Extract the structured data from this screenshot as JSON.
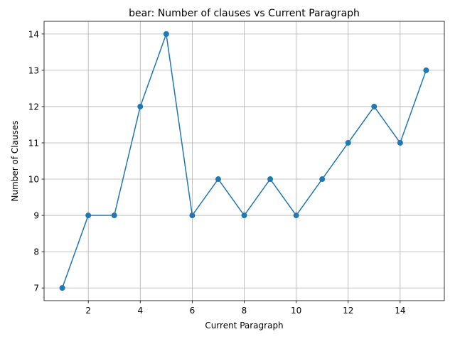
{
  "chart_data": {
    "type": "line",
    "title": "bear: Number of clauses vs Current Paragraph",
    "xlabel": "Current Paragraph",
    "ylabel": "Number of Clauses",
    "xlim": [
      0.3,
      15.7
    ],
    "ylim": [
      6.65,
      14.35
    ],
    "xticks": [
      2,
      4,
      6,
      8,
      10,
      12,
      14
    ],
    "yticks": [
      7,
      8,
      9,
      10,
      11,
      12,
      13,
      14
    ],
    "grid": true,
    "series": [
      {
        "x": [
          1,
          2,
          3,
          4,
          5,
          6,
          7,
          8,
          9,
          10,
          11,
          12,
          13,
          14,
          15
        ],
        "values": [
          7,
          9,
          9,
          12,
          14,
          9,
          10,
          9,
          10,
          9,
          10,
          11,
          12,
          11,
          13
        ],
        "color": "#1f77b4",
        "marker": "circle"
      }
    ]
  }
}
